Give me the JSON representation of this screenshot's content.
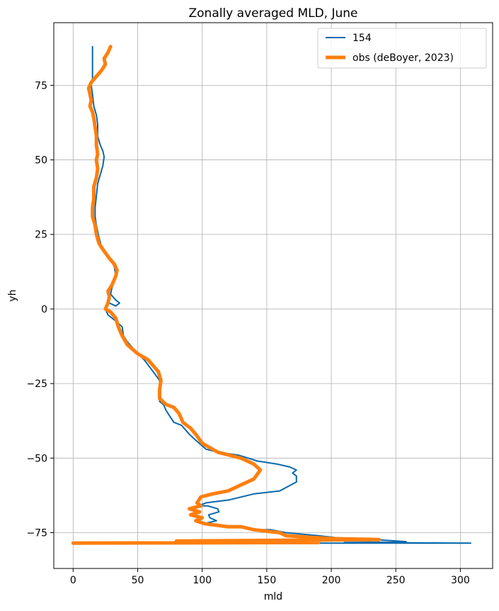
{
  "chart_data": {
    "type": "line",
    "title": "Zonally averaged MLD, June",
    "xlabel": "mld",
    "ylabel": "yh",
    "xlim": [
      -15,
      325
    ],
    "ylim": [
      -87,
      96
    ],
    "xticks": [
      0,
      50,
      100,
      150,
      200,
      250,
      300
    ],
    "yticks": [
      -75,
      -50,
      -25,
      0,
      25,
      50,
      75
    ],
    "xtick_labels": [
      "0",
      "50",
      "100",
      "150",
      "200",
      "250",
      "300"
    ],
    "ytick_labels": [
      "−75",
      "−50",
      "−25",
      "0",
      "25",
      "50",
      "75"
    ],
    "grid": true,
    "legend_position": "top-right",
    "series": [
      {
        "name": "154",
        "color": "#0868ac",
        "line_width": 2,
        "points": [
          [
            15,
            88
          ],
          [
            15,
            85
          ],
          [
            15,
            80
          ],
          [
            15,
            77
          ],
          [
            14,
            75
          ],
          [
            15,
            72
          ],
          [
            16,
            68
          ],
          [
            18,
            65
          ],
          [
            19,
            62
          ],
          [
            19,
            58
          ],
          [
            21,
            55
          ],
          [
            23,
            53
          ],
          [
            24,
            51
          ],
          [
            23,
            48
          ],
          [
            21,
            45
          ],
          [
            19,
            42
          ],
          [
            18,
            38
          ],
          [
            17,
            34
          ],
          [
            17,
            31
          ],
          [
            18,
            28
          ],
          [
            20,
            24
          ],
          [
            22,
            21
          ],
          [
            25,
            19
          ],
          [
            30,
            16
          ],
          [
            32,
            14
          ],
          [
            33,
            11
          ],
          [
            30,
            7
          ],
          [
            29,
            5
          ],
          [
            33,
            3
          ],
          [
            36,
            2
          ],
          [
            33,
            1
          ],
          [
            28,
            2
          ],
          [
            26,
            1
          ],
          [
            25,
            0
          ],
          [
            27,
            -2
          ],
          [
            30,
            -3
          ],
          [
            33,
            -4
          ],
          [
            38,
            -6
          ],
          [
            39,
            -9
          ],
          [
            42,
            -11
          ],
          [
            48,
            -14
          ],
          [
            55,
            -17
          ],
          [
            62,
            -21
          ],
          [
            67,
            -24
          ],
          [
            67,
            -28
          ],
          [
            67,
            -31
          ],
          [
            70,
            -32
          ],
          [
            72,
            -34
          ],
          [
            75,
            -36
          ],
          [
            78,
            -38
          ],
          [
            84,
            -39
          ],
          [
            90,
            -42
          ],
          [
            95,
            -44
          ],
          [
            103,
            -47
          ],
          [
            112,
            -48
          ],
          [
            128,
            -49
          ],
          [
            143,
            -51
          ],
          [
            158,
            -52
          ],
          [
            168,
            -53
          ],
          [
            173,
            -54
          ],
          [
            170,
            -55
          ],
          [
            173,
            -56
          ],
          [
            173,
            -58
          ],
          [
            160,
            -61
          ],
          [
            140,
            -62
          ],
          [
            121,
            -64
          ],
          [
            103,
            -65
          ],
          [
            97,
            -66
          ],
          [
            104,
            -66
          ],
          [
            112,
            -67
          ],
          [
            113,
            -68
          ],
          [
            105,
            -69
          ],
          [
            106,
            -70
          ],
          [
            111,
            -71
          ],
          [
            101,
            -72
          ],
          [
            130,
            -73
          ],
          [
            142,
            -74
          ],
          [
            153,
            -74
          ],
          [
            165,
            -75
          ],
          [
            190,
            -76
          ],
          [
            210,
            -77
          ],
          [
            240,
            -77.5
          ],
          [
            258,
            -78
          ],
          [
            210,
            -78.3
          ],
          [
            308,
            -78.5
          ],
          [
            80,
            -78.5
          ],
          [
            0,
            -78.5
          ]
        ]
      },
      {
        "name": "obs (deBoyer, 2023)",
        "color": "#ff7f0e",
        "line_width": 5,
        "points": [
          [
            29,
            88
          ],
          [
            27,
            86
          ],
          [
            24,
            84
          ],
          [
            25,
            82
          ],
          [
            22,
            80
          ],
          [
            18,
            78
          ],
          [
            14,
            76
          ],
          [
            12,
            74
          ],
          [
            13,
            72
          ],
          [
            14,
            70
          ],
          [
            13,
            68
          ],
          [
            15,
            66
          ],
          [
            16,
            64
          ],
          [
            17,
            61
          ],
          [
            18,
            58
          ],
          [
            18,
            55
          ],
          [
            19,
            52
          ],
          [
            18,
            50
          ],
          [
            19,
            47
          ],
          [
            18,
            44
          ],
          [
            16,
            41
          ],
          [
            16,
            37
          ],
          [
            15,
            34
          ],
          [
            15,
            31
          ],
          [
            17,
            28
          ],
          [
            18,
            25
          ],
          [
            20,
            22
          ],
          [
            23,
            20
          ],
          [
            28,
            17
          ],
          [
            32,
            15
          ],
          [
            34,
            13
          ],
          [
            33,
            11
          ],
          [
            30,
            8
          ],
          [
            27,
            6
          ],
          [
            28,
            4
          ],
          [
            27,
            2
          ],
          [
            25,
            0
          ],
          [
            29,
            -1
          ],
          [
            33,
            -3
          ],
          [
            35,
            -6
          ],
          [
            38,
            -9
          ],
          [
            42,
            -12
          ],
          [
            50,
            -15
          ],
          [
            58,
            -17
          ],
          [
            62,
            -19
          ],
          [
            66,
            -21
          ],
          [
            68,
            -24
          ],
          [
            67,
            -27
          ],
          [
            67,
            -30
          ],
          [
            72,
            -32
          ],
          [
            78,
            -33
          ],
          [
            82,
            -35
          ],
          [
            85,
            -38
          ],
          [
            91,
            -40
          ],
          [
            95,
            -42
          ],
          [
            100,
            -45
          ],
          [
            104,
            -46
          ],
          [
            112,
            -48
          ],
          [
            130,
            -50
          ],
          [
            140,
            -52
          ],
          [
            145,
            -54
          ],
          [
            140,
            -57
          ],
          [
            130,
            -59
          ],
          [
            120,
            -61
          ],
          [
            108,
            -62
          ],
          [
            99,
            -63
          ],
          [
            96,
            -65
          ],
          [
            99,
            -66
          ],
          [
            90,
            -67
          ],
          [
            98,
            -68
          ],
          [
            91,
            -69
          ],
          [
            100,
            -70
          ],
          [
            95,
            -71
          ],
          [
            102,
            -72
          ],
          [
            120,
            -73
          ],
          [
            130,
            -73
          ],
          [
            140,
            -74
          ],
          [
            150,
            -74.5
          ],
          [
            160,
            -75
          ],
          [
            165,
            -76
          ],
          [
            200,
            -77
          ],
          [
            237,
            -77.3
          ],
          [
            80,
            -77.8
          ],
          [
            190,
            -78
          ],
          [
            190,
            -78.3
          ],
          [
            0,
            -78.5
          ]
        ]
      }
    ]
  }
}
